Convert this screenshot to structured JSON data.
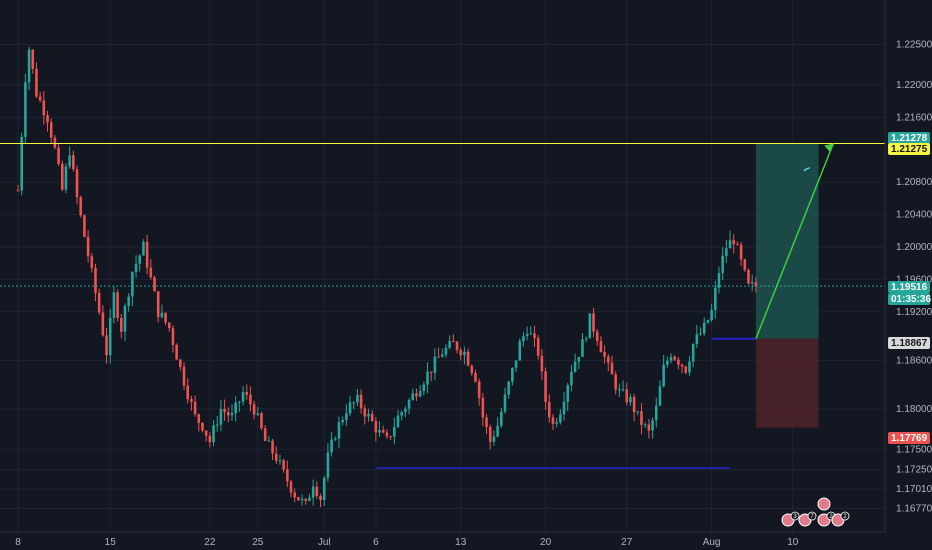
{
  "chart_data": {
    "type": "candlestick",
    "title": "",
    "colors": {
      "background": "#131722",
      "grid": "#1f2433",
      "up": "#26a69a",
      "down": "#ef5350",
      "yellow_line": "#f5f542",
      "current_line": "#26a69a",
      "blue_line": "#2323c8",
      "target_zone": "#1d4f4c",
      "stop_zone": "#4a2228",
      "arrow": "#3bd13b"
    },
    "y_axis": {
      "ylim": [
        1.1648,
        1.2305
      ],
      "ticks": [
        "1.22500",
        "1.22000",
        "1.21600",
        "1.20800",
        "1.20400",
        "1.20000",
        "1.19600",
        "1.19200",
        "1.18600",
        "1.18000",
        "1.17500",
        "1.17250",
        "1.17010",
        "1.16770"
      ],
      "tick_values": [
        1.225,
        1.22,
        1.216,
        1.208,
        1.204,
        1.2,
        1.196,
        1.192,
        1.186,
        1.18,
        1.175,
        1.1725,
        1.1701,
        1.1677
      ]
    },
    "x_axis": {
      "ticks": [
        "8",
        "15",
        "22",
        "25",
        "Jul",
        "6",
        "13",
        "20",
        "27",
        "Aug",
        "10"
      ],
      "tick_index": [
        0,
        25,
        52,
        65,
        83,
        97,
        120,
        143,
        165,
        188,
        210
      ]
    },
    "n_bars": 235,
    "price_path": [
      [
        0,
        1.207
      ],
      [
        2,
        1.221
      ],
      [
        3,
        1.2245
      ],
      [
        5,
        1.219
      ],
      [
        8,
        1.216
      ],
      [
        10,
        1.212
      ],
      [
        12,
        1.207
      ],
      [
        14,
        1.212
      ],
      [
        16,
        1.206
      ],
      [
        19,
        1.199
      ],
      [
        22,
        1.192
      ],
      [
        24,
        1.187
      ],
      [
        26,
        1.194
      ],
      [
        28,
        1.19
      ],
      [
        31,
        1.197
      ],
      [
        34,
        1.2
      ],
      [
        36,
        1.196
      ],
      [
        38,
        1.192
      ],
      [
        41,
        1.19
      ],
      [
        44,
        1.185
      ],
      [
        46,
        1.182
      ],
      [
        48,
        1.179
      ],
      [
        50,
        1.178
      ],
      [
        52,
        1.176
      ],
      [
        55,
        1.18
      ],
      [
        58,
        1.179
      ],
      [
        61,
        1.182
      ],
      [
        64,
        1.18
      ],
      [
        67,
        1.176
      ],
      [
        70,
        1.174
      ],
      [
        72,
        1.172
      ],
      [
        75,
        1.1695
      ],
      [
        78,
        1.168
      ],
      [
        80,
        1.171
      ],
      [
        82,
        1.169
      ],
      [
        84,
        1.174
      ],
      [
        86,
        1.177
      ],
      [
        89,
        1.18
      ],
      [
        92,
        1.181
      ],
      [
        95,
        1.179
      ],
      [
        98,
        1.177
      ],
      [
        100,
        1.176
      ],
      [
        103,
        1.179
      ],
      [
        106,
        1.181
      ],
      [
        109,
        1.183
      ],
      [
        112,
        1.185
      ],
      [
        115,
        1.187
      ],
      [
        118,
        1.188
      ],
      [
        121,
        1.187
      ],
      [
        124,
        1.184
      ],
      [
        126,
        1.179
      ],
      [
        128,
        1.176
      ],
      [
        130,
        1.178
      ],
      [
        133,
        1.183
      ],
      [
        136,
        1.188
      ],
      [
        138,
        1.19
      ],
      [
        141,
        1.187
      ],
      [
        143,
        1.181
      ],
      [
        145,
        1.178
      ],
      [
        147,
        1.18
      ],
      [
        150,
        1.185
      ],
      [
        153,
        1.188
      ],
      [
        155,
        1.191
      ],
      [
        157,
        1.189
      ],
      [
        160,
        1.185
      ],
      [
        163,
        1.182
      ],
      [
        166,
        1.181
      ],
      [
        168,
        1.179
      ],
      [
        171,
        1.177
      ],
      [
        173,
        1.18
      ],
      [
        175,
        1.185
      ],
      [
        177,
        1.187
      ],
      [
        179,
        1.186
      ],
      [
        181,
        1.185
      ],
      [
        183,
        1.188
      ],
      [
        186,
        1.19
      ],
      [
        188,
        1.192
      ],
      [
        190,
        1.197
      ],
      [
        192,
        1.2
      ],
      [
        194,
        1.201
      ],
      [
        196,
        1.198
      ],
      [
        198,
        1.195
      ],
      [
        200,
        1.1952
      ]
    ],
    "levels": {
      "yellow_line": 1.21278,
      "current_price": 1.19516,
      "blue_entry": 1.18867,
      "stop": 1.17769,
      "support_low": 1.1727
    },
    "price_tags": [
      {
        "label": "1.21278",
        "value": 1.21278,
        "bg": "#26a69a",
        "fg": "#ffffff"
      },
      {
        "label": "1.21275",
        "value": 1.21275,
        "bg": "#f5f542",
        "fg": "#131722"
      },
      {
        "label": "1.19516",
        "value": 1.19516,
        "bg": "#26a69a",
        "fg": "#ffffff"
      },
      {
        "label": "01:35:36",
        "value": 1.19516,
        "bg": "#26a69a",
        "fg": "#ffffff"
      },
      {
        "label": "1.18867",
        "value": 1.18867,
        "bg": "#d9d9d9",
        "fg": "#131722"
      },
      {
        "label": "1.17769",
        "value": 1.17769,
        "bg": "#ef5350",
        "fg": "#ffffff"
      }
    ],
    "events": [
      {
        "label": "3",
        "icon": "dollar-icon",
        "color": "#e07b8c"
      },
      {
        "label": "7",
        "icon": "dollar-icon",
        "color": "#e07b8c"
      },
      {
        "label": "2",
        "icon": "dollar-icon",
        "color": "#e07b8c"
      },
      {
        "label": "2",
        "icon": "dollar-icon",
        "color": "#e07b8c"
      },
      {
        "label": "",
        "icon": "alert-icon",
        "color": "#e07b8c"
      }
    ]
  }
}
